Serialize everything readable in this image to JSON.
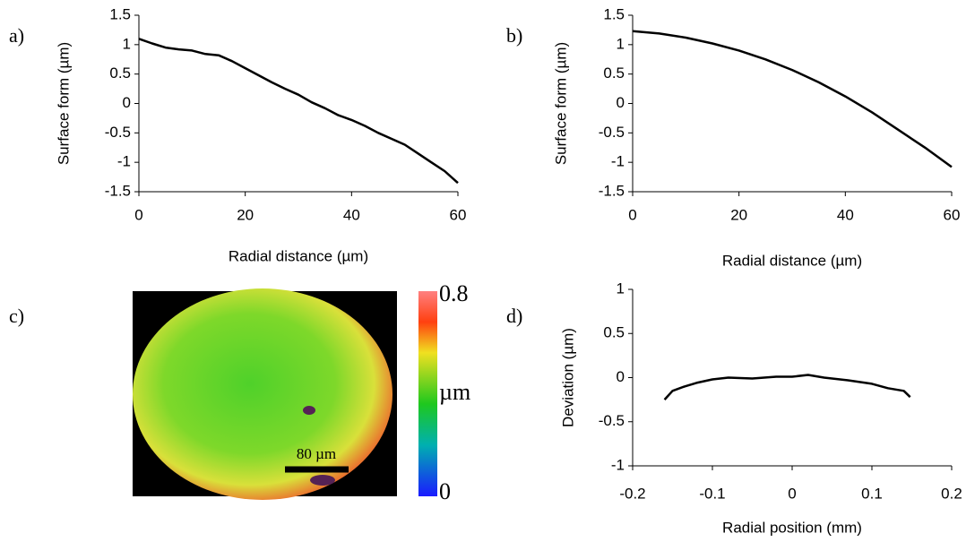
{
  "chart_data": [
    {
      "type": "line",
      "panel_label": "a)",
      "x_label": "Radial distance (µm)",
      "y_label": "Surface form (µm)",
      "x": [
        0,
        2.5,
        5,
        7.5,
        10,
        12.5,
        15,
        17.5,
        20,
        22.5,
        25,
        27.5,
        30,
        32.5,
        35,
        37.5,
        40,
        42.5,
        45,
        47.5,
        50,
        52.5,
        55,
        57.5,
        60
      ],
      "values": [
        1.1,
        1.02,
        0.95,
        0.92,
        0.9,
        0.84,
        0.82,
        0.72,
        0.6,
        0.48,
        0.36,
        0.25,
        0.15,
        0.02,
        -0.08,
        -0.2,
        -0.28,
        -0.38,
        -0.5,
        -0.6,
        -0.7,
        -0.85,
        -1.0,
        -1.15,
        -1.35
      ],
      "color": "#000000",
      "xlim": [
        0,
        60
      ],
      "xticks": [
        0,
        20,
        40,
        60
      ],
      "ylim": [
        -1.5,
        1.5
      ],
      "yticks": [
        1.5,
        1,
        0.5,
        0,
        -0.5,
        -1,
        -1.5
      ]
    },
    {
      "type": "line",
      "panel_label": "b)",
      "x_label": "Radial distance (µm)",
      "y_label": "Surface form (µm)",
      "x": [
        0,
        5,
        10,
        15,
        20,
        25,
        30,
        35,
        40,
        45,
        50,
        55,
        60
      ],
      "values": [
        1.23,
        1.19,
        1.12,
        1.02,
        0.9,
        0.75,
        0.57,
        0.36,
        0.12,
        -0.15,
        -0.45,
        -0.75,
        -1.08
      ],
      "color": "#000000",
      "xlim": [
        0,
        60
      ],
      "xticks": [
        0,
        20,
        40,
        60
      ],
      "ylim": [
        -1.5,
        1.5
      ],
      "yticks": [
        1.5,
        1,
        0.5,
        0,
        -0.5,
        -1,
        -1.5
      ]
    },
    {
      "type": "image",
      "panel_label": "c)",
      "colorbar_ticks": [
        0.8,
        0
      ],
      "colorbar_label": "µm",
      "scale_bar": "80 µm"
    },
    {
      "type": "line",
      "panel_label": "d)",
      "x_label": "Radial position (mm)",
      "y_label": "Deviation (µm)",
      "x": [
        -0.16,
        -0.15,
        -0.135,
        -0.12,
        -0.1,
        -0.08,
        -0.05,
        -0.02,
        0,
        0.02,
        0.04,
        0.07,
        0.1,
        0.12,
        0.14,
        0.148
      ],
      "values": [
        -0.25,
        -0.15,
        -0.1,
        -0.06,
        -0.02,
        0,
        -0.01,
        0.01,
        0.01,
        0.03,
        0.0,
        -0.03,
        -0.07,
        -0.12,
        -0.15,
        -0.22
      ],
      "color": "#000000",
      "xlim": [
        -0.2,
        0.2
      ],
      "xticks": [
        -0.2,
        -0.1,
        0,
        0.1,
        0.2
      ],
      "ylim": [
        -1,
        1
      ],
      "yticks": [
        1,
        0.5,
        0,
        -0.5,
        -1
      ]
    }
  ]
}
